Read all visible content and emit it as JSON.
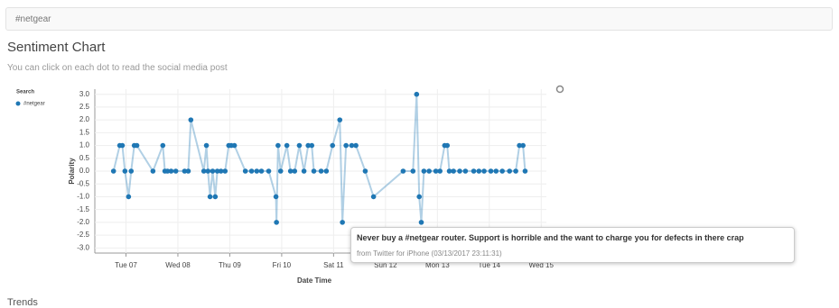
{
  "search": "#netgear",
  "heading": "Sentiment Chart",
  "subtitle": "You can click on each dot to read the social media post",
  "chart_data": {
    "type": "line",
    "legend_title": "Search",
    "x_label": "Date Time",
    "y_label": "Polarity",
    "xlim": [
      6.4,
      15.1
    ],
    "ylim": [
      -3.2,
      3.2
    ],
    "xticks": [
      {
        "value": 7,
        "label": "Tue 07"
      },
      {
        "value": 8,
        "label": "Wed 08"
      },
      {
        "value": 9,
        "label": "Thu 09"
      },
      {
        "value": 10,
        "label": "Fri 10"
      },
      {
        "value": 11,
        "label": "Sat 11"
      },
      {
        "value": 12,
        "label": "Sun 12"
      },
      {
        "value": 13,
        "label": "Mon 13"
      },
      {
        "value": 14,
        "label": "Tue 14"
      },
      {
        "value": 15,
        "label": "Wed 15"
      }
    ],
    "yticks": [
      {
        "value": 3,
        "label": "3.0"
      },
      {
        "value": 2.5,
        "label": "2.5"
      },
      {
        "value": 2,
        "label": "2.0"
      },
      {
        "value": 1.5,
        "label": "1.5"
      },
      {
        "value": 1,
        "label": "1.0"
      },
      {
        "value": 0.5,
        "label": "0.5"
      },
      {
        "value": 0,
        "label": "0.0"
      },
      {
        "value": -0.5,
        "label": "-0.5"
      },
      {
        "value": -1,
        "label": "-1.0"
      },
      {
        "value": -1.5,
        "label": "-1.5"
      },
      {
        "value": -2,
        "label": "-2.0"
      },
      {
        "value": -2.5,
        "label": "-2.5"
      },
      {
        "value": -3,
        "label": "-3.0"
      }
    ],
    "grid": true,
    "series": [
      {
        "name": "#netgear",
        "color": "#1f77b4",
        "x": [
          6.76,
          6.88,
          6.93,
          6.98,
          7.05,
          7.1,
          7.16,
          7.21,
          7.52,
          7.71,
          7.75,
          7.8,
          7.87,
          7.96,
          8.13,
          8.2,
          8.25,
          8.5,
          8.55,
          8.58,
          8.62,
          8.67,
          8.72,
          8.76,
          8.83,
          8.91,
          8.98,
          9.03,
          9.09,
          9.3,
          9.42,
          9.52,
          9.61,
          9.75,
          9.89,
          9.9,
          9.93,
          9.98,
          10.1,
          10.17,
          10.25,
          10.34,
          10.43,
          10.51,
          10.58,
          10.62,
          10.76,
          10.86,
          10.98,
          11.12,
          11.17,
          11.24,
          11.35,
          11.43,
          11.61,
          11.77,
          12.34,
          12.53,
          12.6,
          12.65,
          12.69,
          12.74,
          12.84,
          12.97,
          13.05,
          13.14,
          13.19,
          13.23,
          13.31,
          13.43,
          13.54,
          13.7,
          13.8,
          13.9,
          14.03,
          14.13,
          14.25,
          14.39,
          14.51,
          14.58,
          14.65,
          14.69
        ],
        "values": [
          0,
          1,
          1,
          0,
          -1,
          0,
          1,
          1,
          0,
          1,
          0,
          0,
          0,
          0,
          0,
          0,
          2,
          0,
          1,
          0,
          -1,
          0,
          -1,
          0,
          0,
          0,
          1,
          1,
          1,
          0,
          0,
          0,
          0,
          0,
          -1,
          -2,
          1,
          0,
          1,
          0,
          0,
          1,
          0,
          1,
          1,
          0,
          0,
          0,
          1,
          2,
          -2,
          1,
          1,
          1,
          0,
          -1,
          0,
          0,
          3,
          -1,
          -2,
          0,
          0,
          0,
          0,
          1,
          1,
          0,
          0,
          0,
          0,
          0,
          0,
          0,
          0,
          0,
          0,
          0,
          0,
          1,
          1,
          0
        ]
      }
    ]
  },
  "tooltip": {
    "text": "Never buy a #netgear router. Support is horrible and the want to charge you for defects in there crap",
    "source": "from Twitter for iPhone (03/13/2017 23:11:31)"
  },
  "footer": "Trends"
}
